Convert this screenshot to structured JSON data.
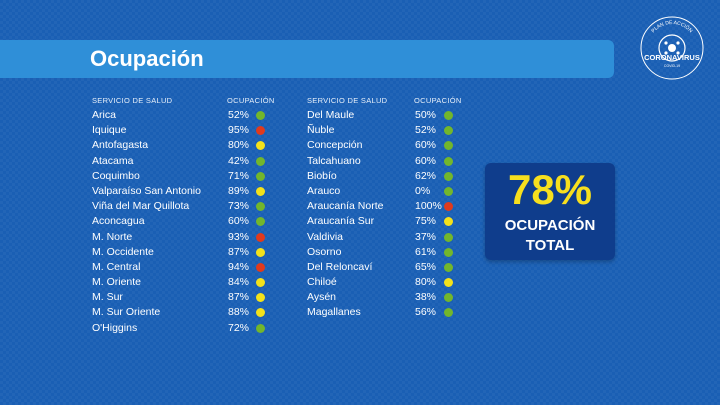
{
  "title": "Ocupación",
  "logo": {
    "top_text": "PLAN DE ACCIÓN",
    "main_text": "CORONAVIRUS",
    "bottom_text": "COVID-19"
  },
  "header": {
    "service": "SERVICIO DE SALUD",
    "occupancy": "OCUPACIÓN"
  },
  "colors": {
    "green": "#72b62c",
    "yellow": "#f3e21b",
    "red": "#e03a1d",
    "accent": "#f7df1e"
  },
  "left_rows": [
    {
      "name": "Arica",
      "pct": "52%",
      "status": "green"
    },
    {
      "name": "Iquique",
      "pct": "95%",
      "status": "red"
    },
    {
      "name": "Antofagasta",
      "pct": "80%",
      "status": "yellow"
    },
    {
      "name": "Atacama",
      "pct": "42%",
      "status": "green"
    },
    {
      "name": "Coquimbo",
      "pct": "71%",
      "status": "green"
    },
    {
      "name": "Valparaíso San Antonio",
      "pct": "89%",
      "status": "yellow"
    },
    {
      "name": "Viña del Mar Quillota",
      "pct": "73%",
      "status": "green"
    },
    {
      "name": "Aconcagua",
      "pct": "60%",
      "status": "green"
    },
    {
      "name": "M. Norte",
      "pct": "93%",
      "status": "red"
    },
    {
      "name": "M. Occidente",
      "pct": "87%",
      "status": "yellow"
    },
    {
      "name": "M. Central",
      "pct": "94%",
      "status": "red"
    },
    {
      "name": "M. Oriente",
      "pct": "84%",
      "status": "yellow"
    },
    {
      "name": "M. Sur",
      "pct": "87%",
      "status": "yellow"
    },
    {
      "name": "M. Sur Oriente",
      "pct": "88%",
      "status": "yellow"
    },
    {
      "name": "O'Higgins",
      "pct": "72%",
      "status": "green"
    }
  ],
  "right_rows": [
    {
      "name": "Del Maule",
      "pct": "50%",
      "status": "green"
    },
    {
      "name": "Ñuble",
      "pct": "52%",
      "status": "green"
    },
    {
      "name": "Concepción",
      "pct": "60%",
      "status": "green"
    },
    {
      "name": "Talcahuano",
      "pct": "60%",
      "status": "green"
    },
    {
      "name": "Biobío",
      "pct": "62%",
      "status": "green"
    },
    {
      "name": "Arauco",
      "pct": "0%",
      "status": "green"
    },
    {
      "name": "Araucanía Norte",
      "pct": "100%",
      "status": "red"
    },
    {
      "name": "Araucanía Sur",
      "pct": "75%",
      "status": "yellow"
    },
    {
      "name": "Valdivia",
      "pct": "37%",
      "status": "green"
    },
    {
      "name": "Osorno",
      "pct": "61%",
      "status": "green"
    },
    {
      "name": "Del Reloncaví",
      "pct": "65%",
      "status": "green"
    },
    {
      "name": "Chiloé",
      "pct": "80%",
      "status": "yellow"
    },
    {
      "name": "Aysén",
      "pct": "38%",
      "status": "green"
    },
    {
      "name": "Magallanes",
      "pct": "56%",
      "status": "green"
    }
  ],
  "total": {
    "value": "78%",
    "label_line1": "OCUPACIÓN",
    "label_line2": "TOTAL"
  }
}
